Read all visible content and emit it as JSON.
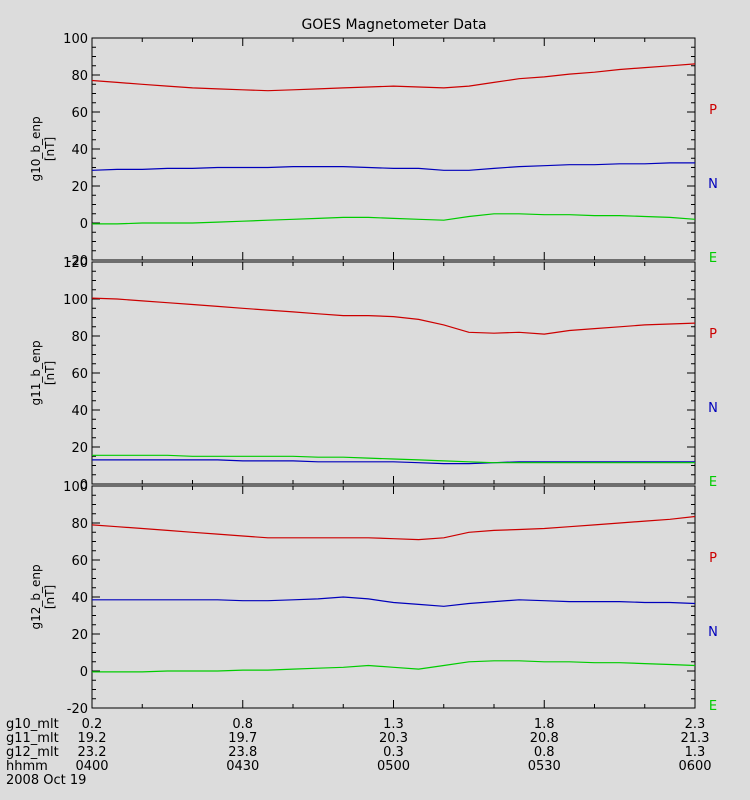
{
  "title": "GOES Magnetometer Data",
  "colors": {
    "P": "#cc0000",
    "N": "#0000bb",
    "E": "#00cc00",
    "axis": "#000000",
    "background": "#dcdcdc"
  },
  "chart_data": [
    {
      "type": "line",
      "ylabel": "g10_b_enp",
      "yunit": "[nT]",
      "ylim": [
        -20,
        100
      ],
      "yticks": [
        "-20",
        "0",
        "20",
        "40",
        "60",
        "80",
        "100"
      ],
      "x": [
        0,
        5,
        10,
        15,
        20,
        25,
        30,
        35,
        40,
        45,
        50,
        55,
        60,
        65,
        70,
        75,
        80,
        85,
        90,
        95,
        100,
        105,
        110,
        115,
        120
      ],
      "series": [
        {
          "name": "P",
          "values": [
            77,
            76,
            75,
            74,
            73,
            72.5,
            72,
            71.5,
            72,
            72.5,
            73,
            73.5,
            74,
            73.5,
            73,
            74,
            76,
            78,
            79,
            80.5,
            81.5,
            83,
            84,
            85,
            86
          ]
        },
        {
          "name": "N",
          "values": [
            28.5,
            29,
            29,
            29.5,
            29.5,
            30,
            30,
            30,
            30.5,
            30.5,
            30.5,
            30,
            29.5,
            29.5,
            28.5,
            28.5,
            29.5,
            30.5,
            31,
            31.5,
            31.5,
            32,
            32,
            32.5,
            32.5
          ]
        },
        {
          "name": "E",
          "values": [
            -0.5,
            -0.5,
            0,
            0,
            0,
            0.5,
            1,
            1.5,
            2,
            2.5,
            3,
            3,
            2.5,
            2,
            1.5,
            3.5,
            5,
            5,
            4.5,
            4.5,
            4,
            4,
            3.5,
            3,
            2
          ]
        }
      ],
      "legend": [
        "P",
        "N",
        "E"
      ]
    },
    {
      "type": "line",
      "ylabel": "g11_b_enp",
      "yunit": "[nT]",
      "ylim": [
        0,
        120
      ],
      "yticks": [
        "0",
        "20",
        "40",
        "60",
        "80",
        "100",
        "120"
      ],
      "x": [
        0,
        5,
        10,
        15,
        20,
        25,
        30,
        35,
        40,
        45,
        50,
        55,
        60,
        65,
        70,
        75,
        80,
        85,
        90,
        95,
        100,
        105,
        110,
        115,
        120
      ],
      "series": [
        {
          "name": "P",
          "values": [
            100.5,
            100,
            99,
            98,
            97,
            96,
            95,
            94,
            93,
            92,
            91,
            91,
            90.5,
            89,
            86,
            82,
            81.5,
            82,
            81,
            83,
            84,
            85,
            86,
            86.5,
            87
          ]
        },
        {
          "name": "N",
          "values": [
            13,
            13,
            13,
            13,
            13,
            13,
            12.5,
            12.5,
            12.5,
            12,
            12,
            12,
            12,
            11.5,
            11,
            11,
            11.5,
            12,
            12,
            12,
            12,
            12,
            12,
            12,
            12
          ]
        },
        {
          "name": "E",
          "values": [
            15.5,
            15.5,
            15.5,
            15.5,
            15,
            15,
            15,
            15,
            15,
            14.5,
            14.5,
            14,
            13.5,
            13,
            12.5,
            12,
            11.5,
            11.5,
            11.5,
            11.5,
            11.5,
            11.5,
            11.5,
            11.5,
            11.5
          ]
        }
      ],
      "legend": [
        "P",
        "N",
        "E"
      ]
    },
    {
      "type": "line",
      "ylabel": "g12_b_enp",
      "yunit": "[nT]",
      "ylim": [
        -20,
        100
      ],
      "yticks": [
        "-20",
        "0",
        "20",
        "40",
        "60",
        "80",
        "100"
      ],
      "x": [
        0,
        5,
        10,
        15,
        20,
        25,
        30,
        35,
        40,
        45,
        50,
        55,
        60,
        65,
        70,
        75,
        80,
        85,
        90,
        95,
        100,
        105,
        110,
        115,
        120
      ],
      "series": [
        {
          "name": "P",
          "values": [
            79,
            78,
            77,
            76,
            75,
            74,
            73,
            72,
            72,
            72,
            72,
            72,
            71.5,
            71,
            72,
            75,
            76,
            76.5,
            77,
            78,
            79,
            80,
            81,
            82,
            83.5
          ]
        },
        {
          "name": "N",
          "values": [
            38.5,
            38.5,
            38.5,
            38.5,
            38.5,
            38.5,
            38,
            38,
            38.5,
            39,
            40,
            39,
            37,
            36,
            35,
            36.5,
            37.5,
            38.5,
            38,
            37.5,
            37.5,
            37.5,
            37,
            37,
            36.5
          ]
        },
        {
          "name": "E",
          "values": [
            -0.5,
            -0.5,
            -0.5,
            0,
            0,
            0,
            0.5,
            0.5,
            1,
            1.5,
            2,
            3,
            2,
            1,
            3,
            5,
            5.5,
            5.5,
            5,
            5,
            4.5,
            4.5,
            4,
            3.5,
            3
          ]
        }
      ],
      "legend": [
        "P",
        "N",
        "E"
      ]
    }
  ],
  "xaxis": {
    "rows": [
      {
        "label": "g10_mlt",
        "values": [
          "0.2",
          "0.8",
          "1.3",
          "1.8",
          "2.3"
        ]
      },
      {
        "label": "g11_mlt",
        "values": [
          "19.2",
          "19.7",
          "20.3",
          "20.8",
          "21.3"
        ]
      },
      {
        "label": "g12_mlt",
        "values": [
          "23.2",
          "23.8",
          "0.3",
          "0.8",
          "1.3"
        ]
      },
      {
        "label": "hhmm",
        "values": [
          "0400",
          "0430",
          "0500",
          "0530",
          "0600"
        ]
      }
    ],
    "date": "2008 Oct 19",
    "major_tick_minutes": [
      0,
      30,
      60,
      90,
      120
    ],
    "minor_tick_minutes": [
      10,
      20,
      40,
      50,
      70,
      80,
      100,
      110
    ],
    "xlim": [
      0,
      120
    ]
  }
}
